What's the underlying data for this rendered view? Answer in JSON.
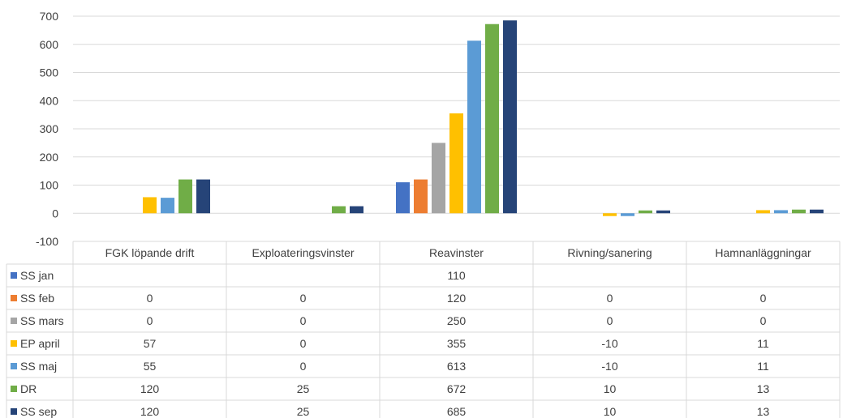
{
  "chart_data": {
    "type": "bar",
    "categories": [
      "FGK löpande drift",
      "Exploateringsvinster",
      "Reavinster",
      "Rivning/sanering",
      "Hamnanläggningar"
    ],
    "series": [
      {
        "name": "SS jan",
        "color": "#4472C4",
        "values": [
          null,
          null,
          110,
          null,
          null
        ]
      },
      {
        "name": "SS feb",
        "color": "#ED7D31",
        "values": [
          0,
          0,
          120,
          0,
          0
        ]
      },
      {
        "name": "SS mars",
        "color": "#A5A5A5",
        "values": [
          0,
          0,
          250,
          0,
          0
        ]
      },
      {
        "name": "EP april",
        "color": "#FFC000",
        "values": [
          57,
          0,
          355,
          -10,
          11
        ]
      },
      {
        "name": "SS maj",
        "color": "#5B9BD5",
        "values": [
          55,
          0,
          613,
          -10,
          11
        ]
      },
      {
        "name": "DR",
        "color": "#70AD47",
        "values": [
          120,
          25,
          672,
          10,
          13
        ]
      },
      {
        "name": "SS sep",
        "color": "#264478",
        "values": [
          120,
          25,
          685,
          10,
          13
        ]
      }
    ],
    "y_ticks": [
      "700",
      "600",
      "500",
      "400",
      "300",
      "200",
      "100",
      "0",
      "-100"
    ],
    "ylim": [
      -100,
      700
    ],
    "grid": true,
    "legend": "data-table"
  }
}
